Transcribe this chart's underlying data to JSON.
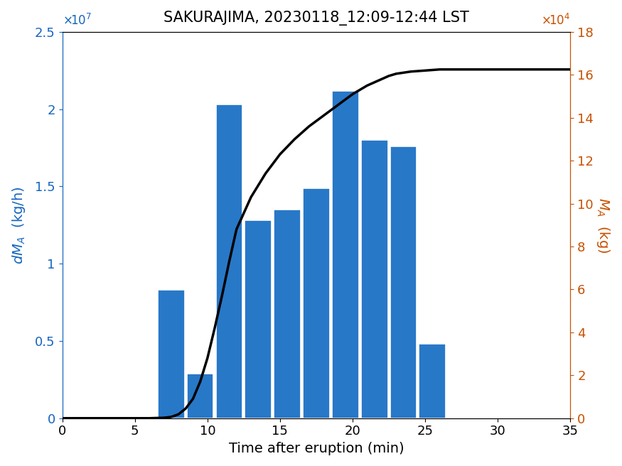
{
  "title": "SAKURAJIMA, 20230118_12:09-12:44 LST",
  "xlabel": "Time after eruption (min)",
  "bar_centers": [
    7.5,
    9.5,
    11.5,
    13.5,
    15.5,
    17.5,
    19.5,
    21.5,
    23.5,
    25.5
  ],
  "bar_heights": [
    8300000.0,
    2900000.0,
    20300000.0,
    12800000.0,
    13500000.0,
    14900000.0,
    21200000.0,
    18000000.0,
    17600000.0,
    4800000.0
  ],
  "bar_width": 1.85,
  "bar_color": "#2878c8",
  "bar_edge_color": "white",
  "xlim": [
    0,
    35
  ],
  "ylim_left": [
    0,
    25000000.0
  ],
  "ylim_right": [
    0,
    180000
  ],
  "xticks": [
    0,
    5,
    10,
    15,
    20,
    25,
    30,
    35
  ],
  "yticks_left": [
    0,
    5000000,
    10000000,
    15000000,
    20000000,
    25000000
  ],
  "ytick_labels_left": [
    "0",
    "0.5",
    "1",
    "1.5",
    "2",
    "2.5"
  ],
  "yticks_right": [
    0,
    20000,
    40000,
    60000,
    80000,
    100000,
    120000,
    140000,
    160000,
    180000
  ],
  "ytick_labels_right": [
    "0",
    "2",
    "4",
    "6",
    "8",
    "10",
    "12",
    "14",
    "16",
    "18"
  ],
  "line_x": [
    0,
    5.0,
    6.0,
    7.0,
    7.5,
    8.0,
    8.5,
    9.0,
    9.5,
    10.0,
    10.5,
    11.0,
    11.5,
    12.0,
    13.0,
    14.0,
    15.0,
    16.0,
    17.0,
    18.0,
    19.0,
    20.0,
    21.0,
    22.0,
    22.5,
    23.0,
    24.0,
    25.0,
    26.0,
    35.0
  ],
  "line_y": [
    0,
    0,
    0,
    200,
    600,
    1800,
    4500,
    9000,
    17000,
    28000,
    42000,
    57000,
    73000,
    88000,
    103000,
    114000,
    123000,
    130000,
    136000,
    141000,
    146000,
    151000,
    155000,
    158000,
    159500,
    160500,
    161500,
    162000,
    162500,
    162500
  ],
  "left_color": "#1565C0",
  "right_color": "#C85000",
  "title_fontsize": 15,
  "label_fontsize": 14,
  "tick_fontsize": 13
}
